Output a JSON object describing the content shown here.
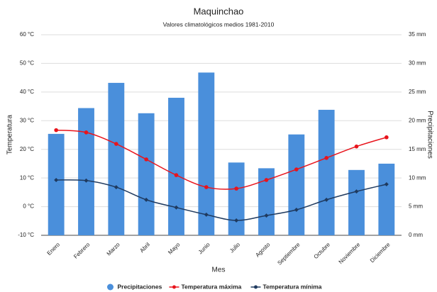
{
  "chart_data": {
    "type": "bar_line",
    "title": "Maquinchao",
    "subtitle": "Valores climatológicos medios 1981-2010",
    "x_label": "Mes",
    "y_label": "Temperatura",
    "y2_label": "Precipitaciones",
    "categories": [
      "Enero",
      "Febrero",
      "Marzo",
      "Abril",
      "Mayo",
      "Junio",
      "Julio",
      "Agosto",
      "Septiembre",
      "Octubre",
      "Noviembre",
      "Diciembre"
    ],
    "ylim": [
      -10,
      60
    ],
    "yticks": [
      {
        "value": -10,
        "label": "-10 °C"
      },
      {
        "value": 0,
        "label": "0 °C"
      },
      {
        "value": 10,
        "label": "10 °C"
      },
      {
        "value": 20,
        "label": "20 °C"
      },
      {
        "value": 30,
        "label": "30 °C"
      },
      {
        "value": 40,
        "label": "40 °C"
      },
      {
        "value": 50,
        "label": "50 °C"
      },
      {
        "value": 60,
        "label": "60 °C"
      }
    ],
    "y2lim": [
      0,
      35
    ],
    "y2ticks": [
      {
        "value": 0,
        "label": "0 mm"
      },
      {
        "value": 5,
        "label": "5 mm"
      },
      {
        "value": 10,
        "label": "10 mm"
      },
      {
        "value": 15,
        "label": "15 mm"
      },
      {
        "value": 20,
        "label": "20 mm"
      },
      {
        "value": 25,
        "label": "25 mm"
      },
      {
        "value": 30,
        "label": "30 mm"
      },
      {
        "value": 35,
        "label": "35 mm"
      }
    ],
    "grid": true,
    "legend": "bottom",
    "series": [
      {
        "name": "Precipitaciones",
        "type": "bar",
        "axis": "y2",
        "color": "#4a8fdb",
        "values": [
          17.7,
          22.2,
          26.6,
          21.3,
          24.0,
          28.4,
          12.7,
          11.7,
          17.6,
          21.9,
          11.4,
          12.5
        ]
      },
      {
        "name": "Temperatura máxima",
        "type": "line",
        "color": "#e8141c",
        "values": [
          26.7,
          25.9,
          21.9,
          16.5,
          11.0,
          6.8,
          6.3,
          9.3,
          13.0,
          17.0,
          21.0,
          24.2
        ]
      },
      {
        "name": "Temperatura mínima",
        "type": "line",
        "color": "#1f3a5f",
        "values": [
          9.3,
          9.1,
          6.8,
          2.4,
          -0.3,
          -2.8,
          -4.8,
          -3.1,
          -1.1,
          2.4,
          5.3,
          7.8
        ]
      }
    ]
  }
}
